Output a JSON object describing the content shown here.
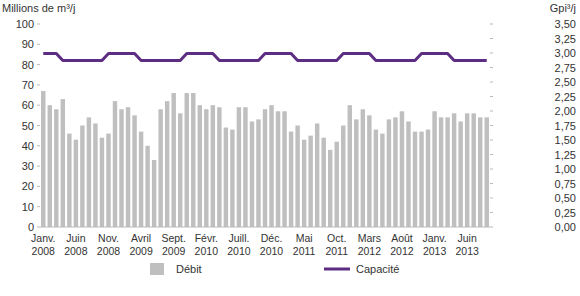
{
  "chart_data": {
    "type": "bar",
    "y_label": "Millions de m³/j",
    "y2_label": "Gpi³/j",
    "categories": [
      "Janv. 2008",
      null,
      null,
      null,
      null,
      "Juin 2008",
      null,
      null,
      null,
      null,
      "Nov. 2008",
      null,
      null,
      null,
      null,
      "Avril 2009",
      null,
      null,
      null,
      null,
      "Sept. 2009",
      null,
      null,
      null,
      null,
      "Févr. 2010",
      null,
      null,
      null,
      null,
      "Juill. 2010",
      null,
      null,
      null,
      null,
      "Déc. 2010",
      null,
      null,
      null,
      null,
      "Mai 2011",
      null,
      null,
      null,
      null,
      "Oct. 2011",
      null,
      null,
      null,
      null,
      "Mars 2012",
      null,
      null,
      null,
      null,
      "Août 2012",
      null,
      null,
      null,
      null,
      "Janv. 2013",
      null,
      null,
      null,
      null,
      "Juin 2013",
      null,
      null,
      null
    ],
    "series": [
      {
        "name": "Débit",
        "type": "bar",
        "color": "#bfbfbf",
        "values": [
          67,
          60,
          58,
          63,
          46,
          43,
          50,
          54,
          51,
          44,
          46,
          62,
          58,
          59,
          55,
          47,
          40,
          33,
          58,
          62,
          66,
          56,
          66,
          66,
          60,
          58,
          60,
          59,
          49,
          48,
          59,
          59,
          52,
          53,
          58,
          60,
          57,
          57,
          47,
          50,
          43,
          45,
          51,
          44,
          38,
          42,
          50,
          60,
          53,
          58,
          55,
          48,
          46,
          53,
          54,
          57,
          52,
          47,
          47,
          48,
          57,
          54,
          54,
          56,
          52,
          56,
          56,
          54,
          54
        ]
      },
      {
        "name": "Capacité",
        "type": "line",
        "color": "#5c2d83",
        "values": [
          85.5,
          85.5,
          85.5,
          82,
          82,
          82,
          82,
          82,
          82,
          82,
          85.5,
          85.5,
          85.5,
          85.5,
          85.5,
          82,
          82,
          82,
          82,
          82,
          82,
          82,
          85.5,
          85.5,
          85.5,
          85.5,
          85.5,
          82,
          82,
          82,
          82,
          82,
          82,
          82,
          85.5,
          85.5,
          85.5,
          85.5,
          85.5,
          82,
          82,
          82,
          82,
          82,
          82,
          82,
          85.5,
          85.5,
          85.5,
          85.5,
          85.5,
          82,
          82,
          82,
          82,
          82,
          82,
          82,
          85.5,
          85.5,
          85.5,
          85.5,
          85.5,
          82,
          82,
          82,
          82,
          82,
          82
        ]
      }
    ],
    "ylim": [
      0,
      100
    ],
    "yticks": [
      0,
      10,
      20,
      30,
      40,
      50,
      60,
      70,
      80,
      90,
      100
    ],
    "y2lim": [
      0,
      3.5
    ],
    "y2ticks": [
      {
        "value": 0,
        "label": "0,00"
      },
      {
        "value": 0.25,
        "label": "0,25"
      },
      {
        "value": 0.5,
        "label": "0,50"
      },
      {
        "value": 0.75,
        "label": "0,75"
      },
      {
        "value": 1,
        "label": "1,00"
      },
      {
        "value": 1.25,
        "label": "1,25"
      },
      {
        "value": 1.5,
        "label": "1,50"
      },
      {
        "value": 1.75,
        "label": "1,75"
      },
      {
        "value": 2,
        "label": "2,00"
      },
      {
        "value": 2.25,
        "label": "2,25"
      },
      {
        "value": 2.5,
        "label": "2,50"
      },
      {
        "value": 2.75,
        "label": "2,75"
      },
      {
        "value": 3,
        "label": "3,00"
      },
      {
        "value": 3.25,
        "label": "3,25"
      },
      {
        "value": 3.5,
        "label": "3,50"
      }
    ],
    "grid": false,
    "legend": "bottom"
  }
}
